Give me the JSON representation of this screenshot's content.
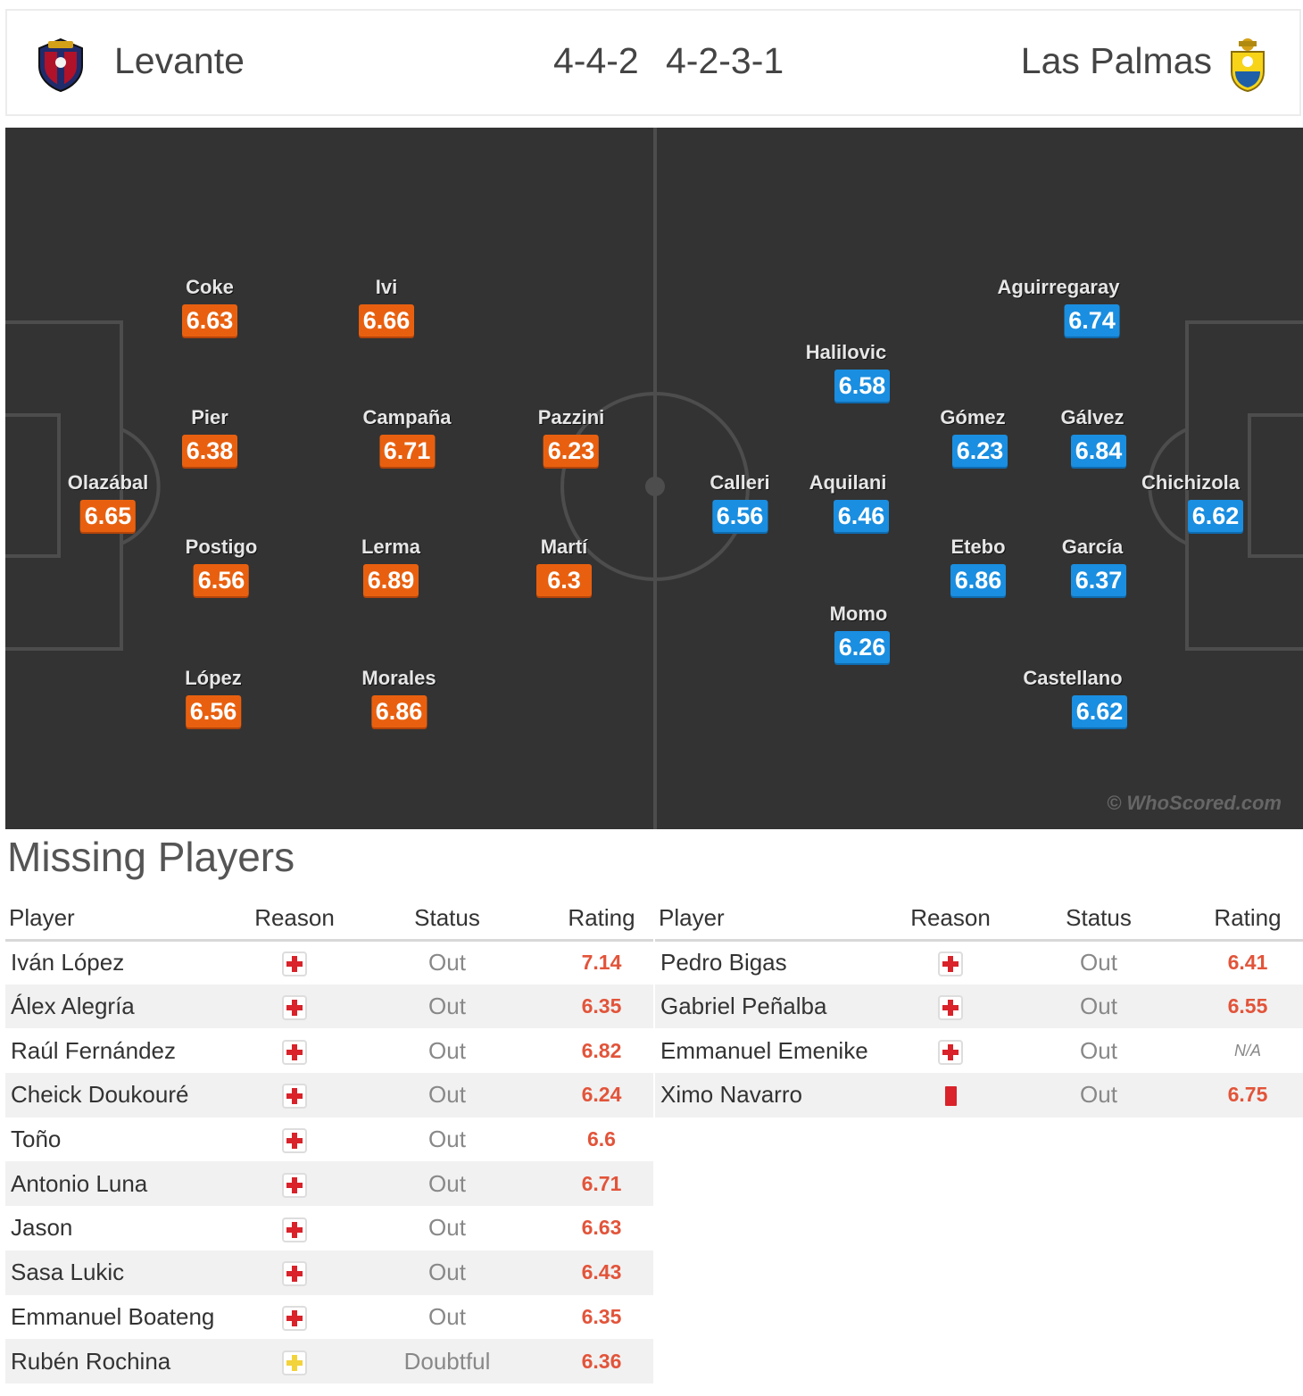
{
  "header": {
    "home_team": "Levante",
    "away_team": "Las Palmas",
    "home_formation": "4-4-2",
    "away_formation": "4-2-3-1"
  },
  "pitch": {
    "watermark": "© WhoScored.com",
    "home_color": "#e8600f",
    "away_color": "#1a8ee0",
    "home_players": [
      {
        "name": "Coke",
        "rating": "6.63"
      },
      {
        "name": "Ivi",
        "rating": "6.66"
      },
      {
        "name": "Pier",
        "rating": "6.38"
      },
      {
        "name": "Campaña",
        "rating": "6.71"
      },
      {
        "name": "Pazzini",
        "rating": "6.23"
      },
      {
        "name": "Olazábal",
        "rating": "6.65"
      },
      {
        "name": "Postigo",
        "rating": "6.56"
      },
      {
        "name": "Lerma",
        "rating": "6.89"
      },
      {
        "name": "Martí",
        "rating": "6.3"
      },
      {
        "name": "López",
        "rating": "6.56"
      },
      {
        "name": "Morales",
        "rating": "6.86"
      }
    ],
    "away_players": [
      {
        "name": "Aguirregaray",
        "rating": "6.74"
      },
      {
        "name": "Halilovic",
        "rating": "6.58"
      },
      {
        "name": "Gómez",
        "rating": "6.23"
      },
      {
        "name": "Gálvez",
        "rating": "6.84"
      },
      {
        "name": "Calleri",
        "rating": "6.56"
      },
      {
        "name": "Aquilani",
        "rating": "6.46"
      },
      {
        "name": "Chichizola",
        "rating": "6.62"
      },
      {
        "name": "Etebo",
        "rating": "6.86"
      },
      {
        "name": "García",
        "rating": "6.37"
      },
      {
        "name": "Momo",
        "rating": "6.26"
      },
      {
        "name": "Castellano",
        "rating": "6.62"
      }
    ]
  },
  "missing": {
    "title": "Missing Players",
    "columns": {
      "player": "Player",
      "reason": "Reason",
      "status": "Status",
      "rating": "Rating"
    },
    "home": [
      {
        "player": "Iván López",
        "reason": "injury-icon",
        "status": "Out",
        "rating": "7.14"
      },
      {
        "player": "Álex Alegría",
        "reason": "injury-icon",
        "status": "Out",
        "rating": "6.35"
      },
      {
        "player": "Raúl Fernández",
        "reason": "injury-icon",
        "status": "Out",
        "rating": "6.82"
      },
      {
        "player": "Cheick Doukouré",
        "reason": "injury-icon",
        "status": "Out",
        "rating": "6.24"
      },
      {
        "player": "Toño",
        "reason": "injury-icon",
        "status": "Out",
        "rating": "6.6"
      },
      {
        "player": "Antonio Luna",
        "reason": "injury-icon",
        "status": "Out",
        "rating": "6.71"
      },
      {
        "player": "Jason",
        "reason": "injury-icon",
        "status": "Out",
        "rating": "6.63"
      },
      {
        "player": "Sasa Lukic",
        "reason": "injury-icon",
        "status": "Out",
        "rating": "6.43"
      },
      {
        "player": "Emmanuel Boateng",
        "reason": "injury-icon",
        "status": "Out",
        "rating": "6.35"
      },
      {
        "player": "Rubén Rochina",
        "reason": "doubtful-injury-icon",
        "status": "Doubtful",
        "rating": "6.36"
      }
    ],
    "away": [
      {
        "player": "Pedro Bigas",
        "reason": "injury-icon",
        "status": "Out",
        "rating": "6.41"
      },
      {
        "player": "Gabriel Peñalba",
        "reason": "injury-icon",
        "status": "Out",
        "rating": "6.55"
      },
      {
        "player": "Emmanuel Emenike",
        "reason": "injury-icon",
        "status": "Out",
        "rating": "N/A"
      },
      {
        "player": "Ximo Navarro",
        "reason": "red-card-icon",
        "status": "Out",
        "rating": "6.75"
      }
    ]
  }
}
